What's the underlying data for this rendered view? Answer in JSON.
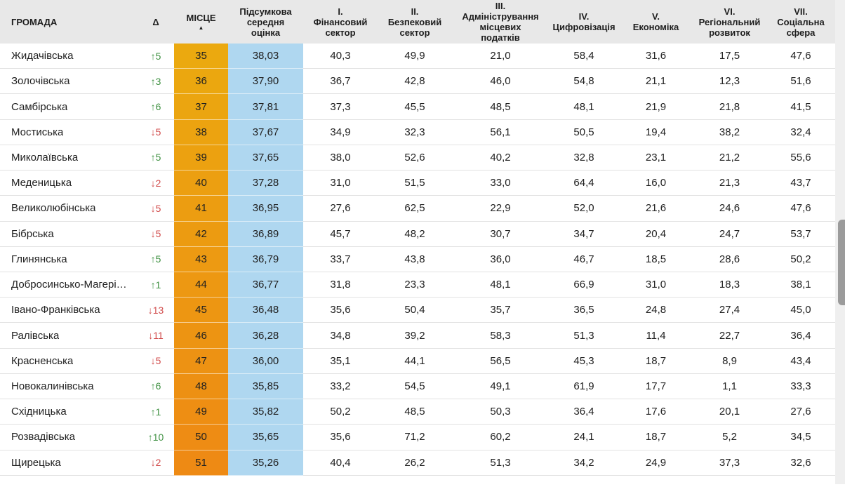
{
  "table": {
    "columns": [
      {
        "label": "ГРОМАДА"
      },
      {
        "label": "Δ"
      },
      {
        "label": "МІСЦЕ",
        "sort_indicator": "▲",
        "sort": "asc"
      },
      {
        "label": "Підсумкова\nсередня\nоцінка"
      },
      {
        "label": "I.\nФінансовий\nсектор"
      },
      {
        "label": "II.\nБезпековий\nсектор"
      },
      {
        "label": "III.\nАдміністрування\nмісцевих\nподатків"
      },
      {
        "label": "IV.\nЦифровізація"
      },
      {
        "label": "V.\nЕкономіка"
      },
      {
        "label": "VI.\nРегіональний\nрозвиток"
      },
      {
        "label": "VII.\nСоціальна\nсфера"
      }
    ],
    "rows": [
      {
        "name": "Жидачівська",
        "delta": "↑5",
        "trend": "up",
        "rank": 35,
        "score": "38,03",
        "values": [
          "40,3",
          "49,9",
          "21,0",
          "58,4",
          "31,6",
          "17,5",
          "47,6"
        ]
      },
      {
        "name": "Золочівська",
        "delta": "↑3",
        "trend": "up",
        "rank": 36,
        "score": "37,90",
        "values": [
          "36,7",
          "42,8",
          "46,0",
          "54,8",
          "21,1",
          "12,3",
          "51,6"
        ]
      },
      {
        "name": "Самбірська",
        "delta": "↑6",
        "trend": "up",
        "rank": 37,
        "score": "37,81",
        "values": [
          "37,3",
          "45,5",
          "48,5",
          "48,1",
          "21,9",
          "21,8",
          "41,5"
        ]
      },
      {
        "name": "Мостиська",
        "delta": "↓5",
        "trend": "down",
        "rank": 38,
        "score": "37,67",
        "values": [
          "34,9",
          "32,3",
          "56,1",
          "50,5",
          "19,4",
          "38,2",
          "32,4"
        ]
      },
      {
        "name": "Миколаївська",
        "delta": "↑5",
        "trend": "up",
        "rank": 39,
        "score": "37,65",
        "values": [
          "38,0",
          "52,6",
          "40,2",
          "32,8",
          "23,1",
          "21,2",
          "55,6"
        ]
      },
      {
        "name": "Меденицька",
        "delta": "↓2",
        "trend": "down",
        "rank": 40,
        "score": "37,28",
        "values": [
          "31,0",
          "51,5",
          "33,0",
          "64,4",
          "16,0",
          "21,3",
          "43,7"
        ]
      },
      {
        "name": "Великолюбінська",
        "delta": "↓5",
        "trend": "down",
        "rank": 41,
        "score": "36,95",
        "values": [
          "27,6",
          "62,5",
          "22,9",
          "52,0",
          "21,6",
          "24,6",
          "47,6"
        ]
      },
      {
        "name": "Бібрська",
        "delta": "↓5",
        "trend": "down",
        "rank": 42,
        "score": "36,89",
        "values": [
          "45,7",
          "48,2",
          "30,7",
          "34,7",
          "20,4",
          "24,7",
          "53,7"
        ]
      },
      {
        "name": "Глинянська",
        "delta": "↑5",
        "trend": "up",
        "rank": 43,
        "score": "36,79",
        "values": [
          "33,7",
          "43,8",
          "36,0",
          "46,7",
          "18,5",
          "28,6",
          "50,2"
        ]
      },
      {
        "name": "Добросинсько-Магері…",
        "delta": "↑1",
        "trend": "up",
        "rank": 44,
        "score": "36,77",
        "values": [
          "31,8",
          "23,3",
          "48,1",
          "66,9",
          "31,0",
          "18,3",
          "38,1"
        ]
      },
      {
        "name": "Івано-Франківська",
        "delta": "↓13",
        "trend": "down",
        "rank": 45,
        "score": "36,48",
        "values": [
          "35,6",
          "50,4",
          "35,7",
          "36,5",
          "24,8",
          "27,4",
          "45,0"
        ]
      },
      {
        "name": "Ралівська",
        "delta": "↓11",
        "trend": "down",
        "rank": 46,
        "score": "36,28",
        "values": [
          "34,8",
          "39,2",
          "58,3",
          "51,3",
          "11,4",
          "22,7",
          "36,4"
        ]
      },
      {
        "name": "Красненська",
        "delta": "↓5",
        "trend": "down",
        "rank": 47,
        "score": "36,00",
        "values": [
          "35,1",
          "44,1",
          "56,5",
          "45,3",
          "18,7",
          "8,9",
          "43,4"
        ]
      },
      {
        "name": "Новокалинівська",
        "delta": "↑6",
        "trend": "up",
        "rank": 48,
        "score": "35,85",
        "values": [
          "33,2",
          "54,5",
          "49,1",
          "61,9",
          "17,7",
          "1,1",
          "33,3"
        ]
      },
      {
        "name": "Східницька",
        "delta": "↑1",
        "trend": "up",
        "rank": 49,
        "score": "35,82",
        "values": [
          "50,2",
          "48,5",
          "50,3",
          "36,4",
          "17,6",
          "20,1",
          "27,6"
        ]
      },
      {
        "name": "Розвадівська",
        "delta": "↑10",
        "trend": "up",
        "rank": 50,
        "score": "35,65",
        "values": [
          "35,6",
          "71,2",
          "60,2",
          "24,1",
          "18,7",
          "5,2",
          "34,5"
        ]
      },
      {
        "name": "Щирецька",
        "delta": "↓2",
        "trend": "down",
        "rank": 51,
        "score": "35,26",
        "values": [
          "40,4",
          "26,2",
          "51,3",
          "34,2",
          "24,9",
          "37,3",
          "32,6"
        ]
      }
    ],
    "rank_gradient": {
      "from": "#EBA90F",
      "to": "#EE8A14",
      "rank_min": 35,
      "rank_max": 51
    },
    "colors": {
      "header_bg": "#E8E8E8",
      "row_border": "#E2E2E2",
      "score_bg": "#AFD7F0",
      "up": "#3F9142",
      "down": "#D14B4B",
      "scroll_track": "#EFEFEF",
      "scroll_thumb": "#9B9B9B",
      "text": "#212121"
    }
  }
}
